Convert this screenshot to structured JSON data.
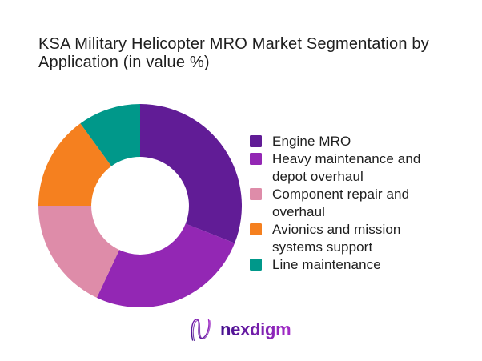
{
  "title": {
    "text": "KSA Military Helicopter MRO Market Segmentation by Application (in value %)",
    "line1": "KSA Military Helicopter MRO Market Segmentation by",
    "line2": "Application (in value %)"
  },
  "chart_data": {
    "type": "pie",
    "subtype": "donut",
    "title": "KSA Military Helicopter MRO Market Segmentation by Application (in value %)",
    "categories": [
      "Engine MRO",
      "Heavy maintenance and depot overhaul",
      "Component repair and overhaul",
      "Avionics and mission systems support",
      "Line maintenance"
    ],
    "values": [
      31,
      26,
      18,
      15,
      10
    ],
    "unit": "%",
    "colors": [
      "#611C96",
      "#9327B4",
      "#DE8CA9",
      "#F5801F",
      "#00988A"
    ],
    "start_angle_deg": 0,
    "direction": "clockwise",
    "inner_radius_ratio": 0.48,
    "legend_position": "right",
    "data_labels": false
  },
  "legend": {
    "items": [
      {
        "label": "Engine MRO",
        "color": "#611C96"
      },
      {
        "label": "Heavy maintenance and\ndepot overhaul",
        "color": "#9327B4"
      },
      {
        "label": "Component repair and\noverhaul",
        "color": "#DE8CA9"
      },
      {
        "label": "Avionics and mission\nsystems support",
        "color": "#F5801F"
      },
      {
        "label": "Line maintenance",
        "color": "#00988A"
      }
    ]
  },
  "logo": {
    "text": "nexdigm",
    "mark": "nexdigm-n-wave-mark",
    "gradient_start": "#43108C",
    "gradient_end": "#A42CC8"
  }
}
